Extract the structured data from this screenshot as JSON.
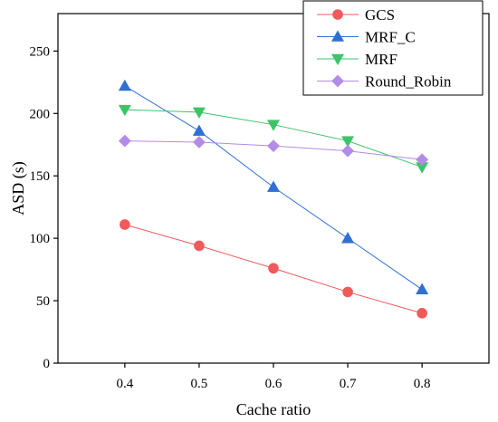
{
  "chart_data": {
    "type": "line",
    "xlabel": "Cache ratio",
    "ylabel": "ASD (s)",
    "x": [
      0.4,
      0.5,
      0.6,
      0.7,
      0.8
    ],
    "x_tick_labels": [
      "0.4",
      "0.5",
      "0.6",
      "0.7",
      "0.8"
    ],
    "xlim": [
      0.31,
      0.89
    ],
    "ylim": [
      0,
      280
    ],
    "y_ticks": [
      0,
      50,
      100,
      150,
      200,
      250
    ],
    "grid": false,
    "legend_position": "top-right",
    "series": [
      {
        "name": "GCS",
        "values": [
          111,
          94,
          76,
          57,
          40
        ],
        "color": "#f05a5a",
        "marker": "circle"
      },
      {
        "name": "MRF_C",
        "values": [
          222,
          186,
          141,
          100,
          59
        ],
        "color": "#2f6fd6",
        "marker": "triangle-up"
      },
      {
        "name": "MRF",
        "values": [
          203,
          201,
          191,
          178,
          157
        ],
        "color": "#3fc36a",
        "marker": "triangle-down"
      },
      {
        "name": "Round_Robin",
        "values": [
          178,
          177,
          174,
          170,
          163
        ],
        "color": "#b48be6",
        "marker": "diamond"
      }
    ]
  }
}
